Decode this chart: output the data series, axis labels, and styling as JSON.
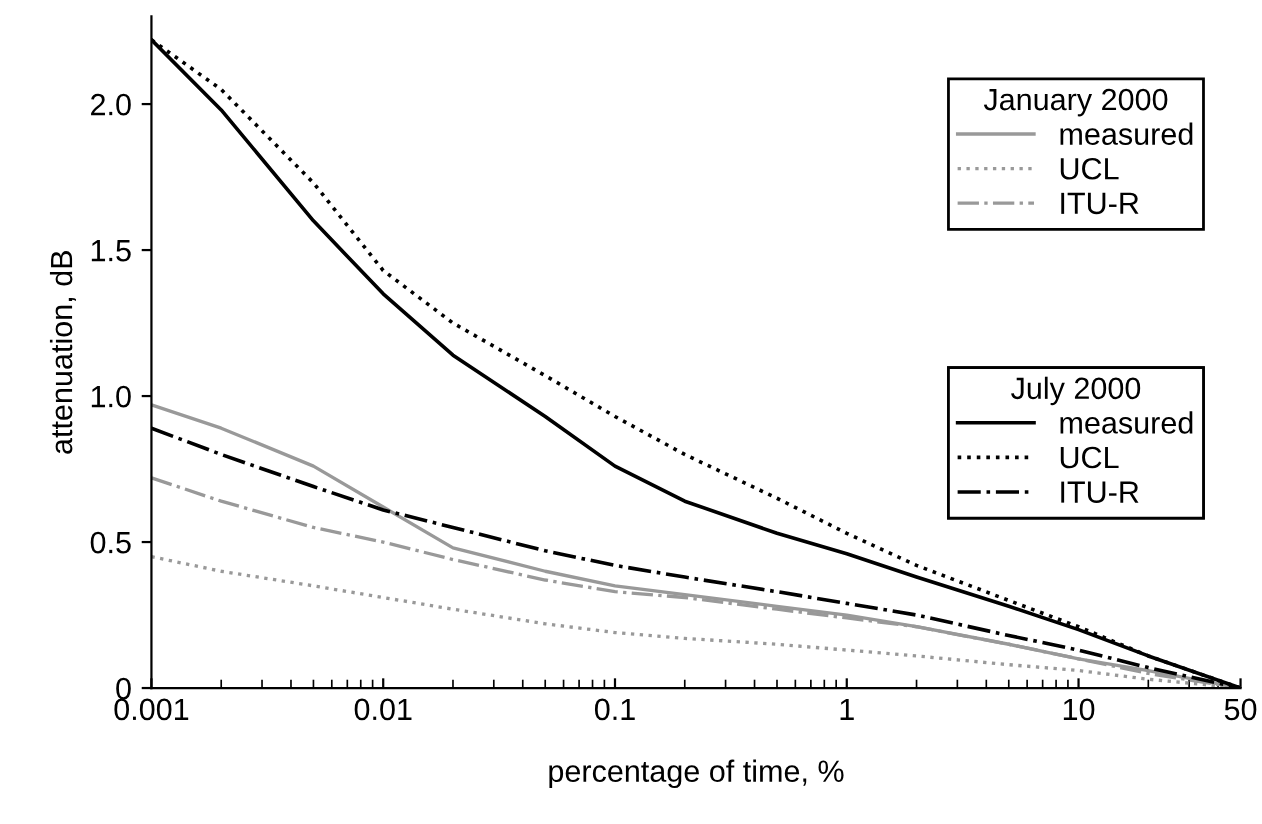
{
  "chart_data": {
    "type": "line",
    "xlabel": "percentage of time, %",
    "ylabel": "attenuation, dB",
    "log": "x",
    "xlim": [
      0.001,
      50
    ],
    "xticks": [
      0.001,
      0.01,
      0.1,
      1,
      10,
      50
    ],
    "ylim": [
      0,
      2.3
    ],
    "yticks": [
      0,
      0.5,
      {
        "value": 1.0,
        "label": "1.0"
      },
      {
        "value": 1.5,
        "label": "1.5"
      },
      {
        "value": 2.0,
        "label": "2.0"
      }
    ],
    "grid": false,
    "legend": "right",
    "legend_title": [
      "January 2000",
      "July 2000"
    ],
    "x": [
      0.001,
      0.002,
      0.005,
      0.01,
      0.02,
      0.05,
      0.1,
      0.2,
      0.5,
      1,
      2,
      5,
      10,
      20,
      50
    ],
    "series": [
      {
        "name": "measured",
        "color": "#999999",
        "line_style": "solid",
        "values": [
          0.97,
          0.89,
          0.76,
          0.62,
          0.48,
          0.4,
          0.35,
          0.32,
          0.28,
          0.25,
          0.21,
          0.15,
          0.1,
          0.06,
          0
        ]
      },
      {
        "name": "UCL",
        "color": "#999999",
        "line_style": "dotted",
        "values": [
          0.45,
          0.4,
          0.35,
          0.31,
          0.27,
          0.22,
          0.19,
          0.17,
          0.15,
          0.13,
          0.11,
          0.08,
          0.06,
          0.03,
          0
        ]
      },
      {
        "name": "ITU-R",
        "color": "#999999",
        "line_style": "dashdot",
        "values": [
          0.72,
          0.64,
          0.55,
          0.5,
          0.44,
          0.37,
          0.33,
          0.31,
          0.27,
          0.24,
          0.21,
          0.15,
          0.1,
          0.05,
          0
        ]
      },
      {
        "name": "measured",
        "color": "#000000",
        "line_style": "solid",
        "values": [
          2.22,
          1.98,
          1.6,
          1.35,
          1.14,
          0.93,
          0.76,
          0.64,
          0.53,
          0.46,
          0.38,
          0.28,
          0.2,
          0.11,
          0
        ]
      },
      {
        "name": "UCL",
        "color": "#000000",
        "line_style": "dotted",
        "values": [
          2.22,
          2.05,
          1.73,
          1.43,
          1.25,
          1.07,
          0.93,
          0.8,
          0.65,
          0.53,
          0.42,
          0.3,
          0.21,
          0.11,
          0
        ]
      },
      {
        "name": "ITU-R",
        "color": "#000000",
        "line_style": "dashdot",
        "values": [
          0.89,
          0.8,
          0.69,
          0.61,
          0.55,
          0.47,
          0.42,
          0.38,
          0.33,
          0.29,
          0.25,
          0.18,
          0.13,
          0.07,
          0
        ]
      }
    ]
  }
}
